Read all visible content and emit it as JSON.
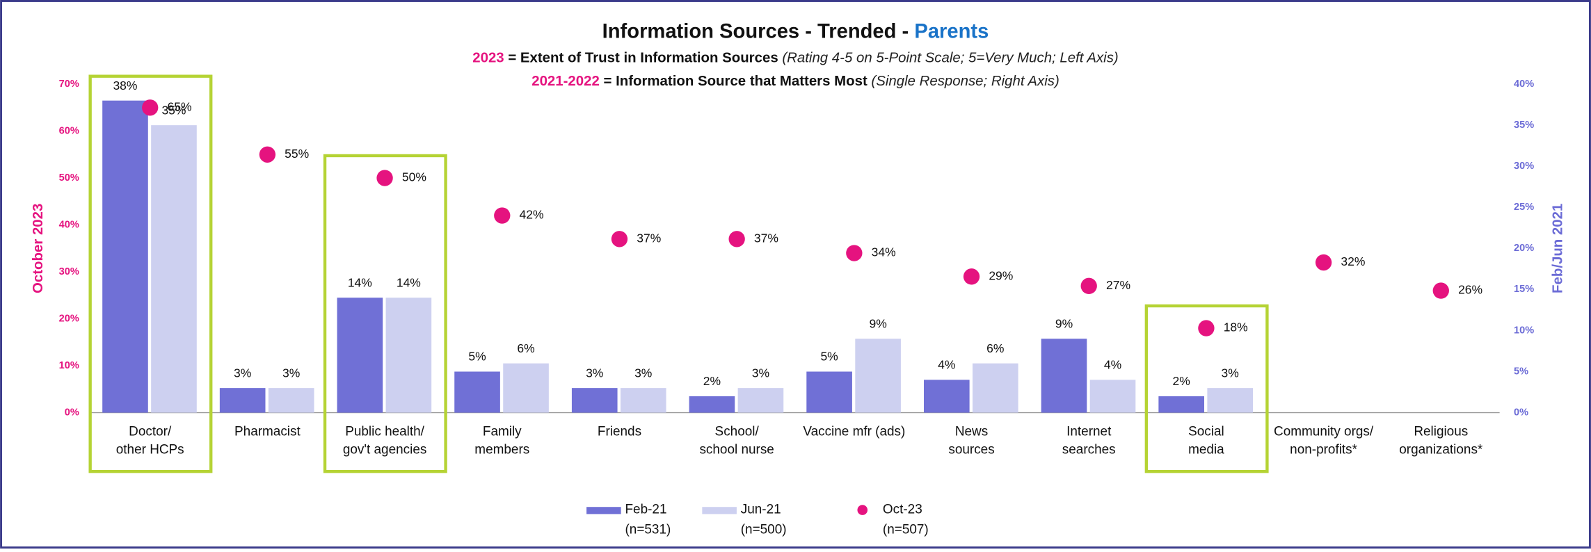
{
  "chart_data": {
    "type": "bar",
    "title": [
      "Information Sources - Trended - ",
      "Parents"
    ],
    "subtitle_lines": [
      [
        "2023",
        " = Extent of Trust in Information Sources ",
        "(Rating 4-5 on 5-Point Scale; 5=Very Much; Left Axis)"
      ],
      [
        "2021-2022",
        " = Information Source that Matters Most ",
        "(Single Response; Right Axis)"
      ]
    ],
    "ylabel": "October 2023",
    "y2label": "Feb/Jun 2021",
    "categories": [
      "Doctor/\nother HCPs",
      "Pharmacist",
      "Public health/\ngov't agencies",
      "Family\nmembers",
      "Friends",
      "School/\nschool nurse",
      "Vaccine mfr (ads)",
      "News\nsources",
      "Internet\nsearches",
      "Social\nmedia",
      "Community orgs/\nnon-profits*",
      "Religious\norganizations*"
    ],
    "highlight": [
      true,
      false,
      true,
      false,
      false,
      false,
      false,
      false,
      false,
      true,
      false,
      false
    ],
    "ylim": [
      0,
      70
    ],
    "yticks": [
      {
        "value": 0,
        "label": "0%"
      },
      {
        "value": 10,
        "label": "10%"
      },
      {
        "value": 20,
        "label": "20%"
      },
      {
        "value": 30,
        "label": "30%"
      },
      {
        "value": 40,
        "label": "40%"
      },
      {
        "value": 50,
        "label": "50%"
      },
      {
        "value": 60,
        "label": "60%"
      },
      {
        "value": 70,
        "label": "70%"
      }
    ],
    "y2lim": [
      0,
      40
    ],
    "y2ticks": [
      {
        "value": 0,
        "label": "0%"
      },
      {
        "value": 5,
        "label": "5%"
      },
      {
        "value": 10,
        "label": "10%"
      },
      {
        "value": 15,
        "label": "15%"
      },
      {
        "value": 20,
        "label": "20%"
      },
      {
        "value": 25,
        "label": "25%"
      },
      {
        "value": 30,
        "label": "30%"
      },
      {
        "value": 35,
        "label": "35%"
      },
      {
        "value": 40,
        "label": "40%"
      }
    ],
    "series": [
      {
        "name": "Feb-21",
        "n": "(n=531)",
        "type": "bar",
        "axis": "y2",
        "color": "#7070d6",
        "values": [
          38,
          3,
          14,
          5,
          3,
          2,
          5,
          4,
          9,
          2,
          null,
          null
        ],
        "value_labels": [
          "38%",
          "3%",
          "14%",
          "5%",
          "3%",
          "2%",
          "5%",
          "4%",
          "9%",
          "2%",
          null,
          null
        ]
      },
      {
        "name": "Jun-21",
        "n": "(n=500)",
        "type": "bar",
        "axis": "y2",
        "color": "#cdd0f0",
        "values": [
          35,
          3,
          14,
          6,
          3,
          3,
          9,
          6,
          4,
          3,
          null,
          null
        ],
        "value_labels": [
          "35%",
          "3%",
          "14%",
          "6%",
          "3%",
          "3%",
          "9%",
          "6%",
          "4%",
          "3%",
          null,
          null
        ]
      },
      {
        "name": "Oct-23",
        "n": "(n=507)",
        "type": "scatter",
        "axis": "y",
        "color": "#e5137f",
        "values": [
          65,
          55,
          50,
          42,
          37,
          37,
          34,
          29,
          27,
          18,
          32,
          26
        ],
        "value_labels": [
          "65%",
          "55%",
          "50%",
          "42%",
          "37%",
          "37%",
          "34%",
          "29%",
          "27%",
          "18%",
          "32%",
          "26%"
        ]
      }
    ]
  }
}
